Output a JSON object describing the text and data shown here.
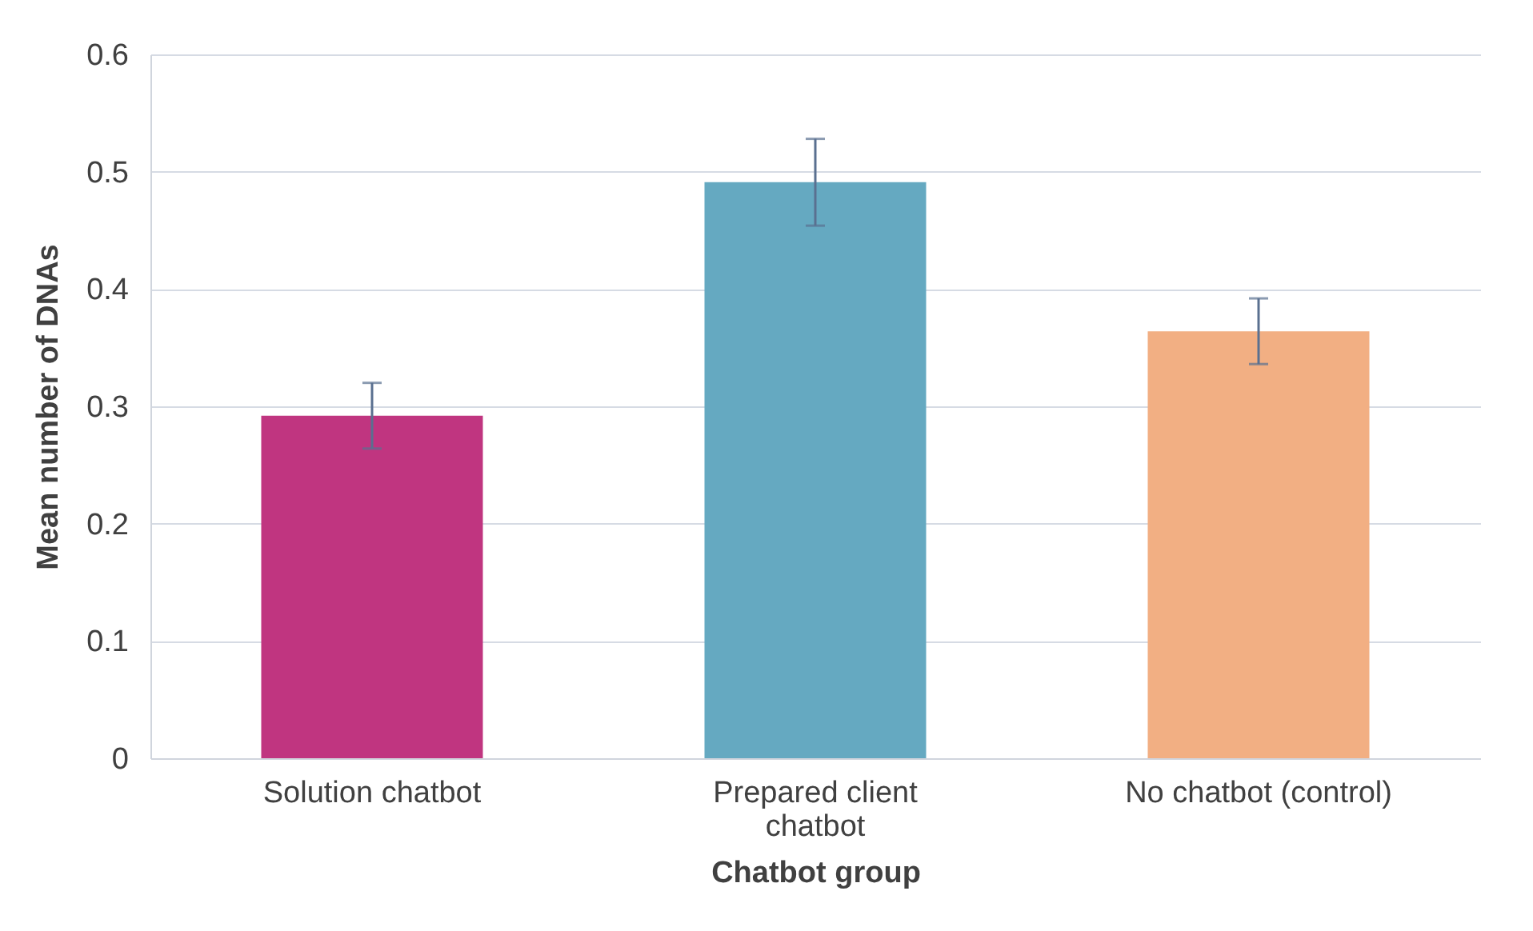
{
  "chart_data": {
    "type": "bar",
    "xlabel": "Chatbot group",
    "ylabel": "Mean number of DNAs",
    "categories": [
      "Solution chatbot",
      "Prepared client chatbot",
      "No chatbot (control)"
    ],
    "values": [
      0.292,
      0.491,
      0.364
    ],
    "colors": [
      "#c03580",
      "#65a9c1",
      "#f2af83"
    ],
    "errors": [
      0.028,
      0.037,
      0.028
    ],
    "ylim": [
      0,
      0.6
    ],
    "yticks": [
      {
        "value": 0,
        "label": "0"
      },
      0.1,
      0.2,
      0.3,
      0.4,
      0.5,
      0.6
    ],
    "grid": "y"
  }
}
